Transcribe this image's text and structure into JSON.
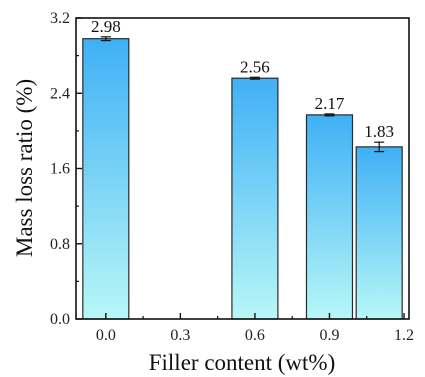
{
  "chart_data": {
    "type": "bar",
    "xlabel": "Filler content (wt%)",
    "ylabel": "Mass loss ratio (%)",
    "x_ticks": [
      "0.0",
      "0.3",
      "0.6",
      "0.9",
      "1.2"
    ],
    "y_ticks": [
      "0.0",
      "0.8",
      "1.6",
      "2.4",
      "3.2"
    ],
    "xlim": [
      -0.12,
      1.22
    ],
    "ylim": [
      0,
      3.2
    ],
    "x": [
      0.0,
      0.6,
      0.9,
      1.1
    ],
    "values": [
      2.98,
      2.56,
      2.17,
      1.83
    ],
    "value_labels": [
      "2.98",
      "2.56",
      "2.17",
      "1.83"
    ],
    "errors": [
      0.02,
      0.01,
      0.01,
      0.05
    ],
    "colors": {
      "bar_top": "#3fb0f5",
      "bar_bottom": "#b7f7f7",
      "bar_stroke": "#2a2a2a",
      "axis": "#111111"
    },
    "grid": false,
    "legend": "none"
  }
}
